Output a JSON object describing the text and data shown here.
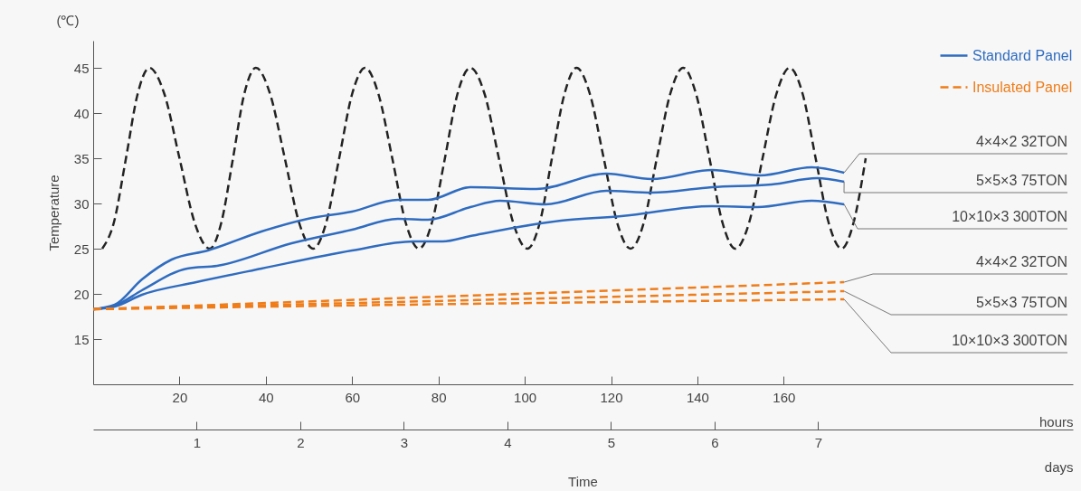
{
  "chart_data": {
    "type": "line",
    "ylabel": "Temperature",
    "xlabel": "hours",
    "x2label": "days",
    "xlim": [
      0,
      227
    ],
    "xticks": [
      20,
      40,
      60,
      80,
      100,
      120,
      140,
      160
    ],
    "x2lim": [
      0,
      9.46
    ],
    "x2ticks": [
      1,
      2,
      3,
      4,
      5,
      6,
      7
    ],
    "ylim": [
      10,
      48
    ],
    "yticks": [
      15,
      20,
      25,
      30,
      35,
      40,
      45
    ],
    "legend": "top right",
    "series": [
      {
        "color": "#222222",
        "line_style": "dashed",
        "x": [
          2.1,
          4.8,
          7.6,
          10.3,
          13,
          16.5,
          20,
          23.5,
          27,
          29.7,
          32.4,
          35.0,
          37.7,
          41.0,
          44.4,
          47.7,
          51,
          54,
          57,
          60,
          63,
          66.1,
          69.3,
          72.4,
          75.5,
          78.5,
          81.5,
          84.4,
          87.4,
          90.7,
          94.0,
          97.3,
          100.6,
          103.5,
          106.3,
          109.2,
          112,
          115.1,
          118.3,
          121.4,
          124.5,
          127.6,
          130.6,
          133.7,
          136.7,
          139.7,
          142.8,
          145.8,
          148.8,
          152.0,
          155.1,
          158.3,
          161.4,
          164.4,
          167.4,
          170.4,
          173.4,
          176.2,
          179
        ],
        "values": [
          25,
          27.9,
          35,
          42.1,
          45,
          42.1,
          35,
          27.9,
          25,
          27.9,
          35,
          42.1,
          45,
          42.1,
          35,
          27.9,
          25,
          27.9,
          35,
          42.1,
          45,
          42.1,
          35,
          27.9,
          25,
          27.9,
          35,
          42.1,
          45,
          42.1,
          35,
          27.9,
          25,
          27.9,
          35,
          42.1,
          45,
          42.1,
          35,
          27.9,
          25,
          27.9,
          35,
          42.1,
          45,
          42.1,
          35,
          27.9,
          25,
          27.9,
          35,
          42.1,
          45,
          42.1,
          35,
          27.9,
          25,
          27.9,
          35
        ]
      },
      {
        "name": "Standard Panel",
        "color": "#2f6cc0",
        "line_style": "solid",
        "x": [
          0,
          5,
          11.3,
          18.2,
          26.6,
          39,
          49.7,
          60,
          70.6,
          77.6,
          87.4,
          102.7,
          118.9,
          129.4,
          143.4,
          154.5,
          166.5,
          174
        ],
        "values": [
          18.3,
          18.8,
          21.6,
          23.8,
          24.8,
          26.9,
          28.3,
          29.1,
          30.4,
          30.4,
          31.8,
          31.6,
          33.3,
          32.7,
          33.7,
          33.1,
          34.0,
          33.4
        ]
      },
      {
        "color": "#2f6cc0",
        "line_style": "solid",
        "x": [
          0,
          5,
          11.3,
          21.8,
          28.7,
          46,
          60,
          70.6,
          77.6,
          87.4,
          94.3,
          104.8,
          118.9,
          129.4,
          143.4,
          157.2,
          167.7,
          174
        ],
        "values": [
          18.3,
          18.7,
          20.4,
          22.8,
          23.1,
          25.6,
          27.1,
          28.3,
          28.2,
          29.6,
          30.3,
          29.9,
          31.4,
          31.2,
          31.8,
          32.1,
          32.8,
          32.4
        ]
      },
      {
        "color": "#2f6cc0",
        "line_style": "solid",
        "x": [
          0,
          5,
          11.3,
          23.9,
          39,
          60,
          74.2,
          81,
          87.4,
          108.4,
          122.4,
          143.4,
          153.9,
          166.5,
          174
        ],
        "values": [
          18.3,
          18.6,
          19.9,
          21.3,
          22.8,
          24.8,
          25.8,
          25.8,
          26.4,
          28.1,
          28.6,
          29.7,
          29.6,
          30.3,
          29.9
        ]
      },
      {
        "name": "Insulated Panel",
        "color": "#ef7d1a",
        "line_style": "dashed",
        "x": [
          0,
          87,
          174
        ],
        "values": [
          18.3,
          19.8,
          21.3
        ]
      },
      {
        "color": "#ef7d1a",
        "line_style": "dashed",
        "x": [
          0,
          87,
          174
        ],
        "values": [
          18.3,
          19.3,
          20.3
        ]
      },
      {
        "color": "#ef7d1a",
        "line_style": "dashed",
        "x": [
          0,
          87,
          174
        ],
        "values": [
          18.3,
          18.9,
          19.4
        ]
      }
    ],
    "annotations": [
      "4×4×2 32TON",
      "5×5×3 75TON",
      "10×10×3 300TON",
      "4×4×2 32TON",
      "5×5×3 75TON",
      "10×10×3 300TON",
      "(℃)",
      "Time"
    ]
  }
}
